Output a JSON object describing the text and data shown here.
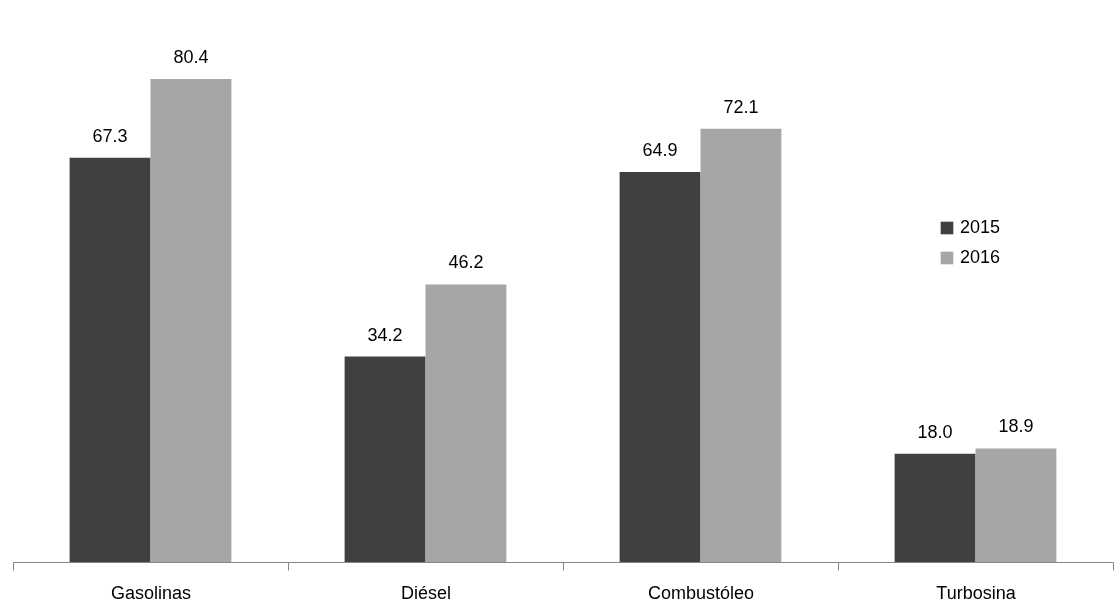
{
  "chart_data": {
    "type": "bar",
    "categories": [
      "Gasolinas",
      "Diésel",
      "Combustóleo",
      "Turbosina"
    ],
    "series": [
      {
        "name": "2015",
        "color": "#404040",
        "values": [
          67.3,
          34.2,
          64.9,
          18.0
        ],
        "value_labels": [
          "67.3",
          "34.2",
          "64.9",
          "18.0"
        ]
      },
      {
        "name": "2016",
        "color": "#a6a6a6",
        "values": [
          80.4,
          46.2,
          72.1,
          18.9
        ],
        "value_labels": [
          "80.4",
          "46.2",
          "72.1",
          "18.9"
        ]
      }
    ],
    "legend": "right",
    "tick_labels": "x"
  }
}
